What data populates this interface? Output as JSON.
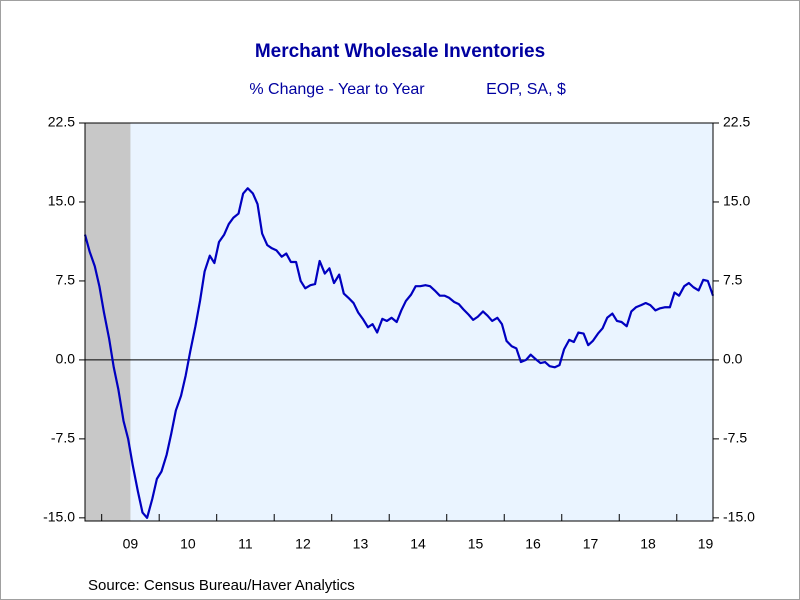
{
  "chart_data": {
    "type": "line",
    "title": "Merchant Wholesale Inventories",
    "subtitle": "% Change - Year to Year",
    "subtitle_right": "EOP, SA, $",
    "source": "Source:  Census Bureau/Haver Analytics",
    "x": [
      2008.71,
      2008.79,
      2008.88,
      2008.96,
      2009.04,
      2009.13,
      2009.21,
      2009.29,
      2009.38,
      2009.46,
      2009.54,
      2009.63,
      2009.71,
      2009.79,
      2009.88,
      2009.96,
      2010.04,
      2010.13,
      2010.21,
      2010.29,
      2010.38,
      2010.46,
      2010.54,
      2010.63,
      2010.71,
      2010.79,
      2010.88,
      2010.96,
      2011.04,
      2011.13,
      2011.21,
      2011.29,
      2011.38,
      2011.46,
      2011.54,
      2011.63,
      2011.71,
      2011.79,
      2011.88,
      2011.96,
      2012.04,
      2012.13,
      2012.21,
      2012.29,
      2012.38,
      2012.46,
      2012.54,
      2012.63,
      2012.71,
      2012.79,
      2012.88,
      2012.96,
      2013.04,
      2013.13,
      2013.21,
      2013.29,
      2013.38,
      2013.46,
      2013.54,
      2013.63,
      2013.71,
      2013.79,
      2013.88,
      2013.96,
      2014.04,
      2014.13,
      2014.21,
      2014.29,
      2014.38,
      2014.46,
      2014.54,
      2014.63,
      2014.71,
      2014.79,
      2014.88,
      2014.96,
      2015.04,
      2015.13,
      2015.21,
      2015.29,
      2015.38,
      2015.46,
      2015.54,
      2015.63,
      2015.71,
      2015.79,
      2015.88,
      2015.96,
      2016.04,
      2016.13,
      2016.21,
      2016.29,
      2016.38,
      2016.46,
      2016.54,
      2016.63,
      2016.71,
      2016.79,
      2016.88,
      2016.96,
      2017.04,
      2017.13,
      2017.21,
      2017.29,
      2017.38,
      2017.46,
      2017.54,
      2017.63,
      2017.71,
      2017.79,
      2017.88,
      2017.96,
      2018.04,
      2018.13,
      2018.21,
      2018.29,
      2018.38,
      2018.46,
      2018.54,
      2018.63,
      2018.71,
      2018.79,
      2018.88,
      2018.96,
      2019.04,
      2019.13,
      2019.21,
      2019.29,
      2019.38,
      2019.46,
      2019.54,
      2019.63
    ],
    "series": [
      {
        "name": "Merchant Wholesale Inventories",
        "color": "#0000c0",
        "values": [
          11.9,
          10.3,
          8.9,
          7.0,
          4.5,
          2.0,
          -0.7,
          -2.8,
          -5.8,
          -7.5,
          -10.0,
          -12.5,
          -14.5,
          -15.0,
          -13.2,
          -11.3,
          -10.6,
          -9.0,
          -7.0,
          -4.8,
          -3.4,
          -1.5,
          0.8,
          3.2,
          5.6,
          8.4,
          9.9,
          9.2,
          11.2,
          11.9,
          12.9,
          13.5,
          13.9,
          15.8,
          16.3,
          15.8,
          14.8,
          12.0,
          10.9,
          10.6,
          10.4,
          9.8,
          10.1,
          9.3,
          9.3,
          7.5,
          6.8,
          7.1,
          7.2,
          9.4,
          8.2,
          8.7,
          7.3,
          8.1,
          6.3,
          5.9,
          5.4,
          4.5,
          3.9,
          3.1,
          3.4,
          2.6,
          3.9,
          3.7,
          4.0,
          3.6,
          4.7,
          5.6,
          6.2,
          7.0,
          7.0,
          7.1,
          7.0,
          6.6,
          6.1,
          6.1,
          5.9,
          5.5,
          5.3,
          4.8,
          4.3,
          3.8,
          4.1,
          4.6,
          4.2,
          3.7,
          4.0,
          3.4,
          1.8,
          1.3,
          1.1,
          -0.2,
          0.0,
          0.5,
          0.1,
          -0.3,
          -0.2,
          -0.6,
          -0.7,
          -0.5,
          1.0,
          1.9,
          1.7,
          2.6,
          2.5,
          1.4,
          1.8,
          2.5,
          3.0,
          4.0,
          4.4,
          3.7,
          3.6,
          3.2,
          4.6,
          5.0,
          5.2,
          5.4,
          5.2,
          4.7,
          4.9,
          5.0,
          5.0,
          6.4,
          6.1,
          7.0,
          7.3,
          6.9,
          6.6,
          7.6,
          7.5,
          6.1
        ]
      }
    ],
    "xlim": [
      2008.71,
      2019.63
    ],
    "xticks": [
      {
        "value": 2009.5,
        "label": "09"
      },
      {
        "value": 2010.5,
        "label": "10"
      },
      {
        "value": 2011.5,
        "label": "11"
      },
      {
        "value": 2012.5,
        "label": "12"
      },
      {
        "value": 2013.5,
        "label": "13"
      },
      {
        "value": 2014.5,
        "label": "14"
      },
      {
        "value": 2015.5,
        "label": "15"
      },
      {
        "value": 2016.5,
        "label": "16"
      },
      {
        "value": 2017.5,
        "label": "17"
      },
      {
        "value": 2018.5,
        "label": "18"
      },
      {
        "value": 2019.5,
        "label": "19"
      }
    ],
    "minor_xticks": [
      2009,
      2010,
      2011,
      2012,
      2013,
      2014,
      2015,
      2016,
      2017,
      2018,
      2019
    ],
    "ylim": [
      -15.3,
      22.5
    ],
    "yticks": [
      22.5,
      {
        "value": 15,
        "label": "15.0"
      },
      7.5,
      {
        "value": 0,
        "label": "0.0"
      },
      -7.5,
      {
        "value": -15,
        "label": "-15.0"
      }
    ],
    "y2lim": [
      -15.3,
      22.5
    ],
    "y2ticks": [
      22.5,
      {
        "value": 15,
        "label": "15.0"
      },
      7.5,
      {
        "value": 0,
        "label": "0.0"
      },
      -7.5,
      {
        "value": -15,
        "label": "-15.0"
      }
    ],
    "shaded_range": [
      2007.92,
      2009.5
    ],
    "shade_color": "#c8c8c8",
    "plot_background": "#eaf4ff",
    "zero_line": true
  }
}
